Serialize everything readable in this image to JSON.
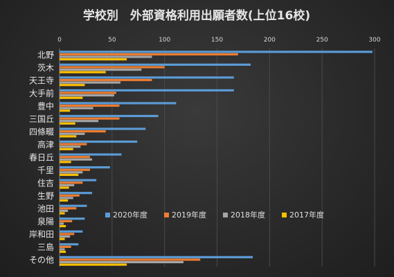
{
  "chart_data": {
    "type": "bar",
    "orientation": "horizontal",
    "title": "学校別　外部資格利用出願者数(上位16校)",
    "xlim": [
      0,
      300
    ],
    "x_ticks": [
      0,
      50,
      100,
      150,
      200,
      250,
      300
    ],
    "grid": true,
    "legend_position": "bottom-right",
    "categories": [
      "北野",
      "茨木",
      "天王寺",
      "大手前",
      "豊中",
      "三国丘",
      "四條畷",
      "高津",
      "春日丘",
      "千里",
      "住吉",
      "生野",
      "池田",
      "泉陽",
      "岸和田",
      "三島",
      "その他"
    ],
    "series": [
      {
        "name": "2020年度",
        "color": "#5b9bd5",
        "values": [
          298,
          182,
          166,
          166,
          111,
          94,
          82,
          74,
          59,
          48,
          35,
          31,
          26,
          24,
          22,
          18,
          184
        ]
      },
      {
        "name": "2019年度",
        "color": "#ed7d31",
        "values": [
          170,
          100,
          88,
          54,
          57,
          57,
          44,
          26,
          29,
          29,
          22,
          19,
          16,
          12,
          14,
          11,
          134
        ]
      },
      {
        "name": "2018年度",
        "color": "#a5a5a5",
        "values": [
          88,
          78,
          58,
          52,
          32,
          37,
          24,
          20,
          31,
          22,
          14,
          13,
          8,
          4,
          10,
          5,
          118
        ]
      },
      {
        "name": "2017年度",
        "color": "#ffc000",
        "values": [
          64,
          44,
          24,
          22,
          10,
          15,
          16,
          13,
          11,
          18,
          9,
          8,
          5,
          6,
          5,
          6,
          64
        ]
      }
    ]
  }
}
